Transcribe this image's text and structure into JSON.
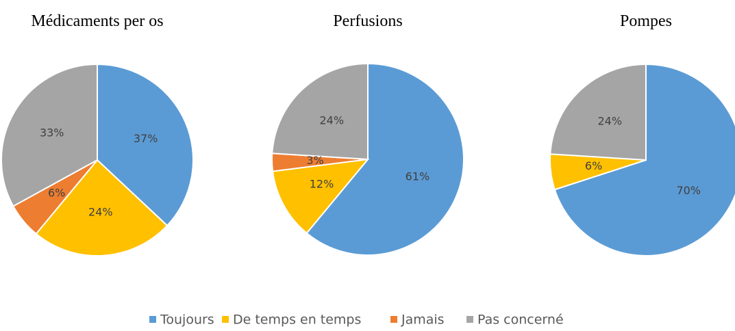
{
  "legend": {
    "labels": [
      "Toujours",
      "De temps en temps",
      "Jamais",
      "Pas concerné"
    ],
    "colors": [
      "#5b9bd5",
      "#ffc000",
      "#ed7d31",
      "#a5a5a5"
    ]
  },
  "chart_data": [
    {
      "type": "pie",
      "title": "Médicaments per os",
      "values": [
        37,
        24,
        6,
        33
      ],
      "value_labels": [
        "37%",
        "24%",
        "6%",
        "33%"
      ]
    },
    {
      "type": "pie",
      "title": "Perfusions",
      "values": [
        61,
        12,
        3,
        24
      ],
      "value_labels": [
        "61%",
        "12%",
        "3%",
        "24%"
      ]
    },
    {
      "type": "pie",
      "title": "Pompes",
      "values": [
        70,
        6,
        0,
        24
      ],
      "value_labels": [
        "70%",
        "6%",
        null,
        "24%"
      ]
    }
  ]
}
